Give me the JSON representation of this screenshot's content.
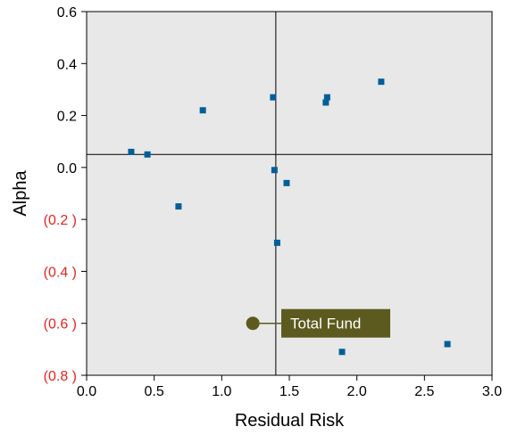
{
  "chart_data": {
    "type": "scatter",
    "xlabel": "Residual Risk",
    "ylabel": "Alpha",
    "xlim": [
      0,
      3.0
    ],
    "ylim": [
      -0.8,
      0.6
    ],
    "grid": false,
    "x_ticks": [
      {
        "value": 0,
        "label": "0.0"
      },
      {
        "value": 0.5,
        "label": "0.5"
      },
      {
        "value": 1.0,
        "label": "1.0"
      },
      {
        "value": 1.5,
        "label": "1.5"
      },
      {
        "value": 2.0,
        "label": "2.0"
      },
      {
        "value": 2.5,
        "label": "2.5"
      },
      {
        "value": 3.0,
        "label": "3.0"
      }
    ],
    "y_ticks": [
      {
        "value": 0.6,
        "label": "0.6",
        "negative": false
      },
      {
        "value": 0.4,
        "label": "0.4",
        "negative": false
      },
      {
        "value": 0.2,
        "label": "0.2",
        "negative": false
      },
      {
        "value": 0.0,
        "label": "0.0",
        "negative": false
      },
      {
        "value": -0.2,
        "label": "(0.2 )",
        "negative": true
      },
      {
        "value": -0.4,
        "label": "(0.4 )",
        "negative": true
      },
      {
        "value": -0.6,
        "label": "(0.6 )",
        "negative": true
      },
      {
        "value": -0.8,
        "label": "(0.8 )",
        "negative": true
      }
    ],
    "reference_lines": {
      "x": 1.4,
      "y": 0.05
    },
    "series": [
      {
        "marker": "square",
        "color": "#005f99",
        "points": [
          {
            "x": 0.33,
            "y": 0.06
          },
          {
            "x": 0.45,
            "y": 0.05
          },
          {
            "x": 0.68,
            "y": -0.15
          },
          {
            "x": 0.86,
            "y": 0.22
          },
          {
            "x": 1.38,
            "y": 0.27
          },
          {
            "x": 1.39,
            "y": -0.01
          },
          {
            "x": 1.41,
            "y": -0.29
          },
          {
            "x": 1.48,
            "y": -0.06
          },
          {
            "x": 1.77,
            "y": 0.25
          },
          {
            "x": 1.78,
            "y": 0.27
          },
          {
            "x": 1.89,
            "y": -0.71
          },
          {
            "x": 2.18,
            "y": 0.33
          },
          {
            "x": 2.67,
            "y": -0.68
          }
        ]
      }
    ],
    "highlight": {
      "label": "Total Fund",
      "x": 1.23,
      "y": -0.6,
      "color": "#5c5a1e"
    },
    "colors": {
      "plot_background": "#e8e8e8",
      "negative_label": "#e8251f",
      "positive_label": "#000000",
      "axis": "#000000"
    }
  }
}
